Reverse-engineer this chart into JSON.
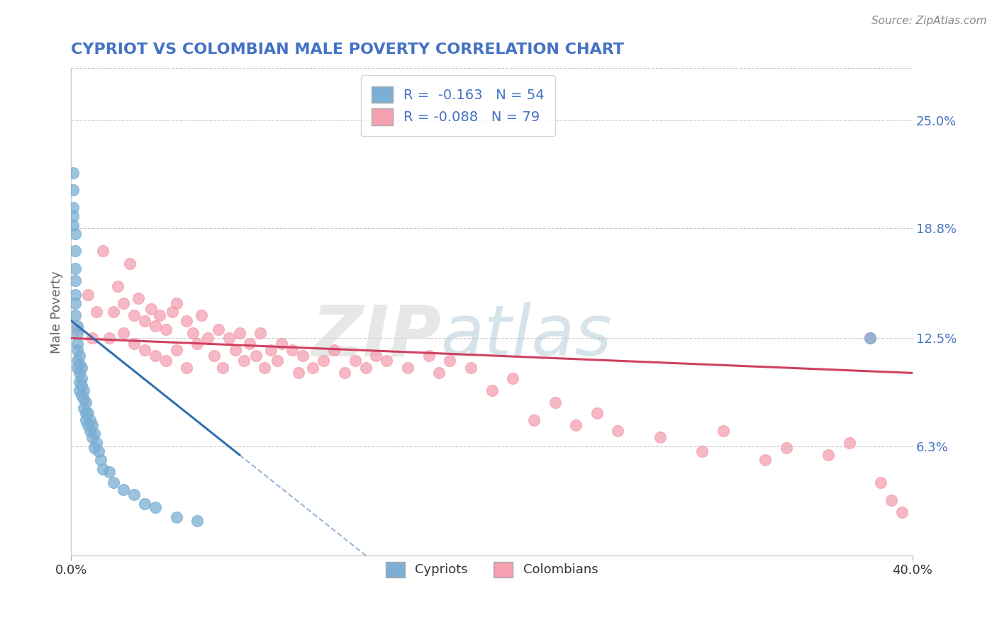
{
  "title": "CYPRIOT VS COLOMBIAN MALE POVERTY CORRELATION CHART",
  "source_text": "Source: ZipAtlas.com",
  "ylabel": "Male Poverty",
  "xlim": [
    0.0,
    0.4
  ],
  "ylim": [
    0.0,
    0.28
  ],
  "xtick_labels": [
    "0.0%",
    "40.0%"
  ],
  "xtick_positions": [
    0.0,
    0.4
  ],
  "ytick_labels": [
    "6.3%",
    "12.5%",
    "18.8%",
    "25.0%"
  ],
  "ytick_positions": [
    0.063,
    0.125,
    0.188,
    0.25
  ],
  "cypriot_color": "#7bafd4",
  "colombian_color": "#f4a0b0",
  "cypriot_line_color": "#3070b0",
  "colombian_line_color": "#d04060",
  "cypriot_R": -0.163,
  "cypriot_N": 54,
  "colombian_R": -0.088,
  "colombian_N": 79,
  "background_color": "#ffffff",
  "grid_color": "#cccccc",
  "title_color": "#4472c4",
  "axis_label_color": "#666666",
  "right_label_color": "#4472c4",
  "watermark_text": "ZIPatlas",
  "cypriot_scatter_x": [
    0.001,
    0.001,
    0.001,
    0.001,
    0.001,
    0.002,
    0.002,
    0.002,
    0.002,
    0.002,
    0.002,
    0.002,
    0.003,
    0.003,
    0.003,
    0.003,
    0.003,
    0.003,
    0.004,
    0.004,
    0.004,
    0.004,
    0.004,
    0.005,
    0.005,
    0.005,
    0.005,
    0.006,
    0.006,
    0.006,
    0.007,
    0.007,
    0.007,
    0.008,
    0.008,
    0.009,
    0.009,
    0.01,
    0.01,
    0.011,
    0.011,
    0.012,
    0.013,
    0.014,
    0.015,
    0.018,
    0.02,
    0.025,
    0.03,
    0.035,
    0.04,
    0.05,
    0.06,
    0.38
  ],
  "cypriot_scatter_y": [
    0.22,
    0.21,
    0.2,
    0.195,
    0.19,
    0.185,
    0.175,
    0.165,
    0.158,
    0.15,
    0.145,
    0.138,
    0.132,
    0.128,
    0.122,
    0.118,
    0.112,
    0.108,
    0.115,
    0.11,
    0.105,
    0.1,
    0.095,
    0.108,
    0.102,
    0.098,
    0.092,
    0.095,
    0.09,
    0.085,
    0.088,
    0.082,
    0.078,
    0.082,
    0.075,
    0.078,
    0.072,
    0.075,
    0.068,
    0.07,
    0.062,
    0.065,
    0.06,
    0.055,
    0.05,
    0.048,
    0.042,
    0.038,
    0.035,
    0.03,
    0.028,
    0.022,
    0.02,
    0.125
  ],
  "colombian_scatter_x": [
    0.003,
    0.008,
    0.01,
    0.012,
    0.015,
    0.018,
    0.02,
    0.022,
    0.025,
    0.025,
    0.028,
    0.03,
    0.03,
    0.032,
    0.035,
    0.035,
    0.038,
    0.04,
    0.04,
    0.042,
    0.045,
    0.045,
    0.048,
    0.05,
    0.05,
    0.055,
    0.055,
    0.058,
    0.06,
    0.062,
    0.065,
    0.068,
    0.07,
    0.072,
    0.075,
    0.078,
    0.08,
    0.082,
    0.085,
    0.088,
    0.09,
    0.092,
    0.095,
    0.098,
    0.1,
    0.105,
    0.108,
    0.11,
    0.115,
    0.12,
    0.125,
    0.13,
    0.135,
    0.14,
    0.145,
    0.15,
    0.16,
    0.17,
    0.175,
    0.18,
    0.19,
    0.2,
    0.21,
    0.22,
    0.23,
    0.24,
    0.25,
    0.26,
    0.28,
    0.3,
    0.31,
    0.33,
    0.34,
    0.36,
    0.37,
    0.38,
    0.385,
    0.39,
    0.395
  ],
  "colombian_scatter_y": [
    0.13,
    0.15,
    0.125,
    0.14,
    0.175,
    0.125,
    0.14,
    0.155,
    0.145,
    0.128,
    0.168,
    0.138,
    0.122,
    0.148,
    0.135,
    0.118,
    0.142,
    0.132,
    0.115,
    0.138,
    0.13,
    0.112,
    0.14,
    0.145,
    0.118,
    0.135,
    0.108,
    0.128,
    0.122,
    0.138,
    0.125,
    0.115,
    0.13,
    0.108,
    0.125,
    0.118,
    0.128,
    0.112,
    0.122,
    0.115,
    0.128,
    0.108,
    0.118,
    0.112,
    0.122,
    0.118,
    0.105,
    0.115,
    0.108,
    0.112,
    0.118,
    0.105,
    0.112,
    0.108,
    0.115,
    0.112,
    0.108,
    0.115,
    0.105,
    0.112,
    0.108,
    0.095,
    0.102,
    0.078,
    0.088,
    0.075,
    0.082,
    0.072,
    0.068,
    0.06,
    0.072,
    0.055,
    0.062,
    0.058,
    0.065,
    0.125,
    0.042,
    0.032,
    0.025
  ]
}
